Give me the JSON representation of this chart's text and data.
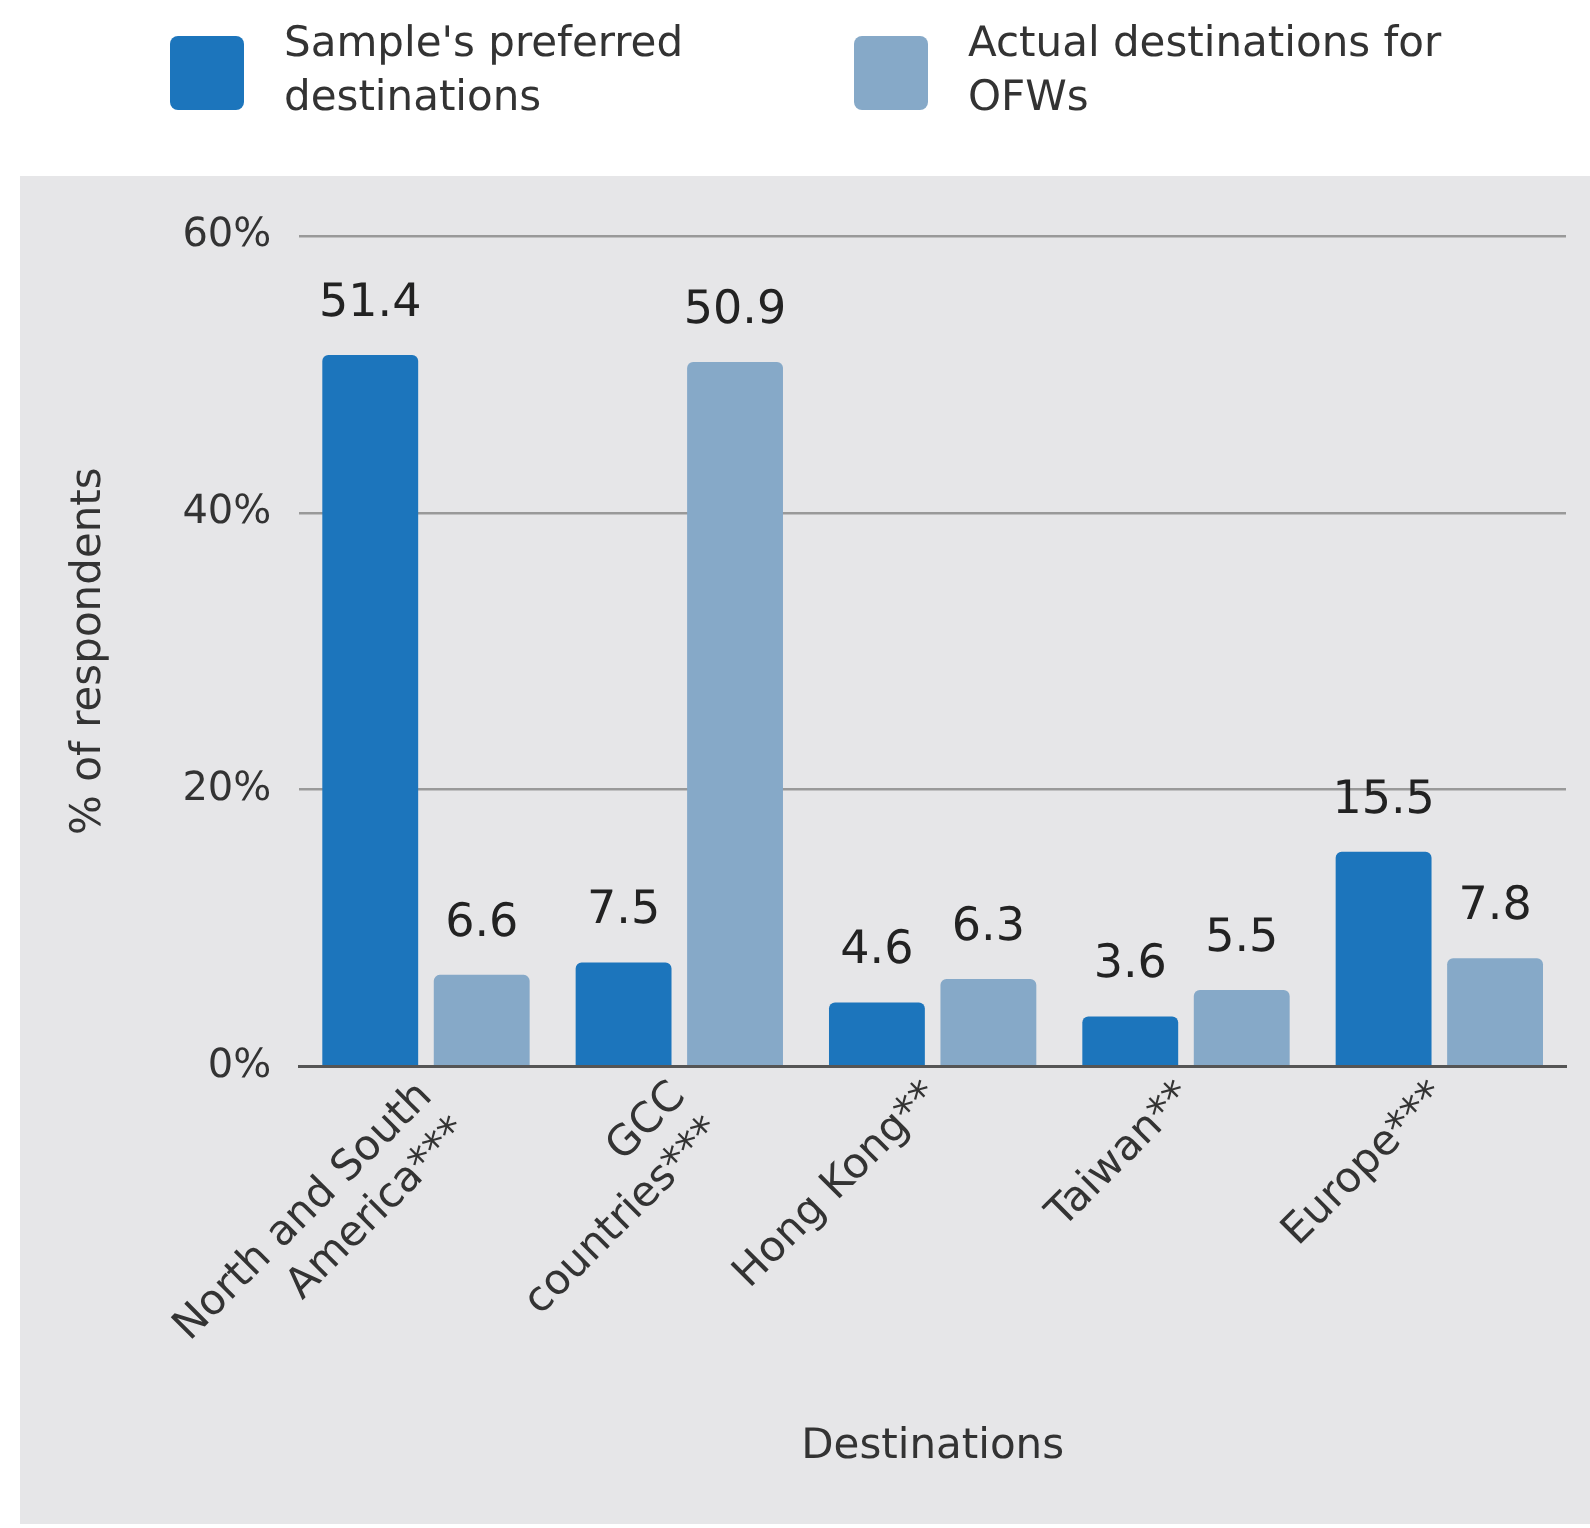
{
  "chart_data": {
    "type": "bar",
    "xlabel": "Destinations",
    "ylabel": "% of respondents",
    "categories": [
      "North and South America***",
      "GCC countries***",
      "Hong Kong**",
      "Taiwan**",
      "Europe***"
    ],
    "series": [
      {
        "name": "Sample's preferred destinations",
        "color": "#1c75bc",
        "values": [
          51.4,
          7.5,
          4.6,
          3.6,
          15.5
        ]
      },
      {
        "name": "Actual destinations for OFWs",
        "color": "#86a9c8",
        "values": [
          6.6,
          50.9,
          6.3,
          5.5,
          7.8
        ]
      }
    ],
    "ylim": [
      0,
      60
    ],
    "yticks": [
      {
        "value": 0,
        "label": "0%"
      },
      {
        "value": 20,
        "label": "20%"
      },
      {
        "value": 40,
        "label": "40%"
      },
      {
        "value": 60,
        "label": "60%"
      }
    ],
    "grid": "y",
    "legend": "top",
    "data_labels": true
  }
}
